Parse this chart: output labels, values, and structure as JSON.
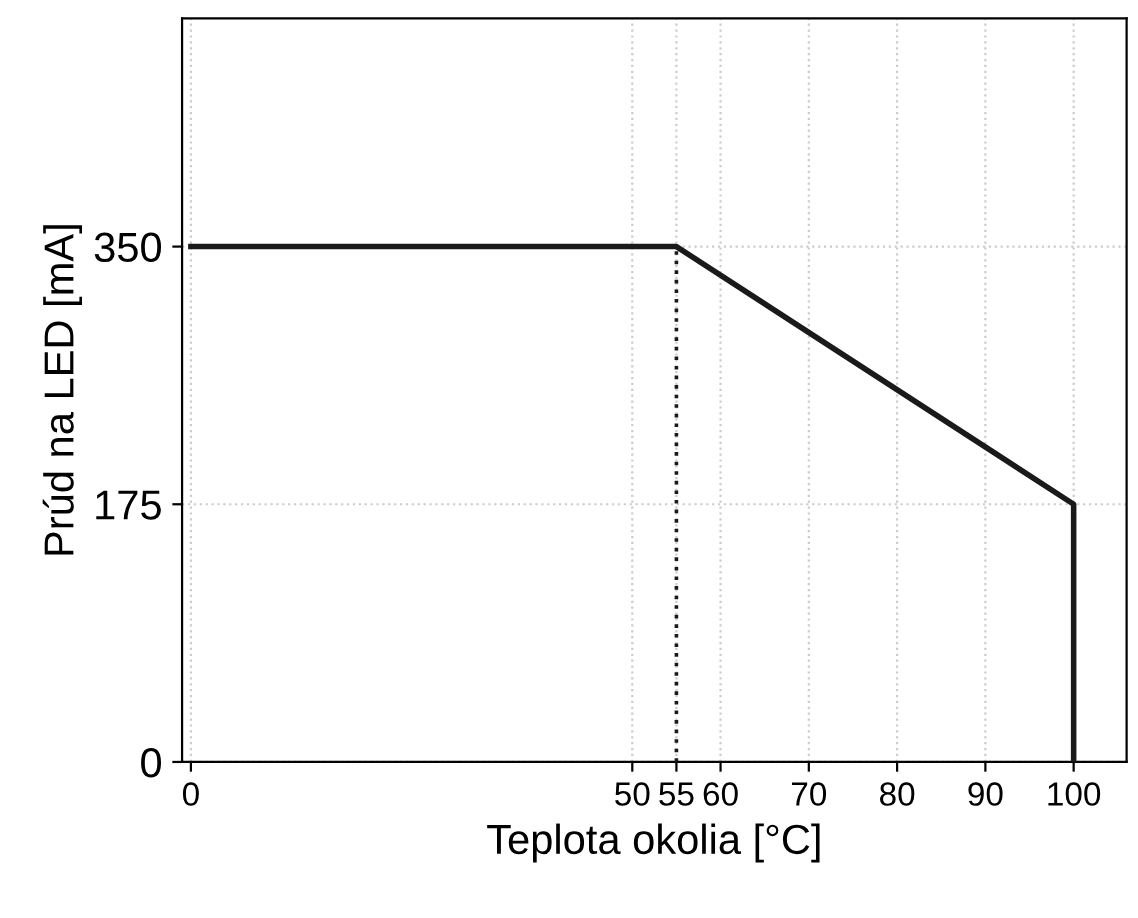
{
  "chart_data": {
    "type": "line",
    "xlabel": "Teplota okolia [°C]",
    "ylabel": "Prúd na LED [mA]",
    "xlim": [
      -1,
      106
    ],
    "xticks": [
      0,
      50,
      55,
      60,
      70,
      80,
      90,
      100
    ],
    "ylim": [
      0,
      505
    ],
    "yticks": [
      0,
      175,
      350
    ],
    "grid": true,
    "marker": "none",
    "series": [
      {
        "color": "#1a1a1a",
        "x": [
          0,
          55,
          100,
          100
        ],
        "values": [
          350,
          350,
          175,
          0
        ],
        "line_style": "solid"
      },
      {
        "color": "#1a1a1a",
        "x": [
          55,
          55
        ],
        "values": [
          0,
          350
        ],
        "line_style": "dotted"
      }
    ]
  }
}
